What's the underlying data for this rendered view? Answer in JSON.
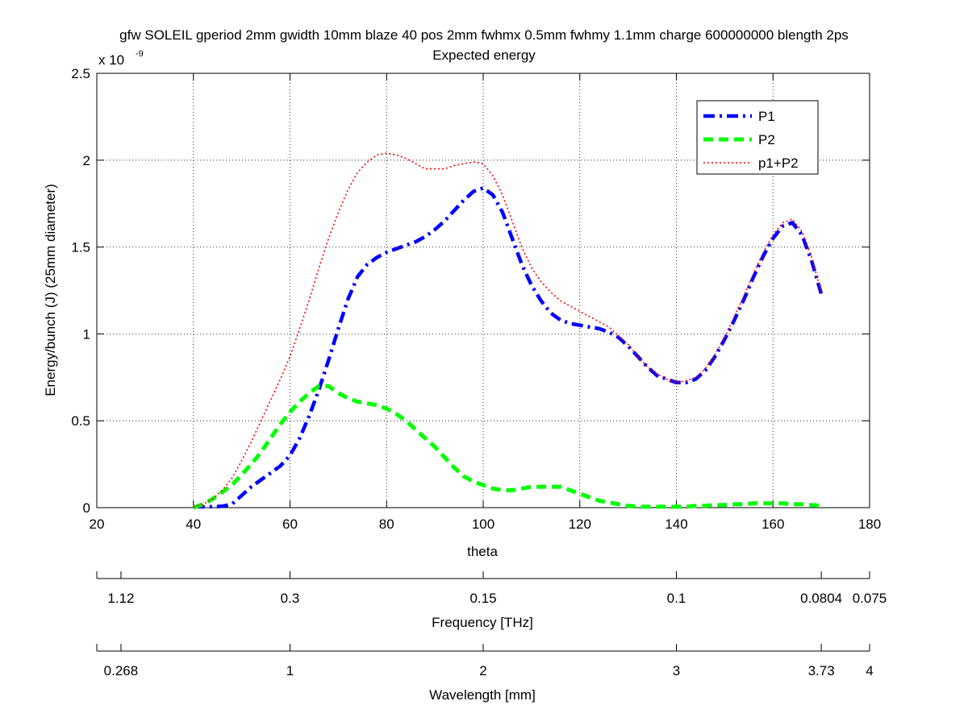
{
  "chart_data": {
    "type": "line",
    "title": "gfw SOLEIL gperiod 2mm gwidth 10mm blaze 40 pos 2mm fwhmx 0.5mm fwhmy 1.1mm charge 600000000 blength 2ps",
    "subtitle": "Expected energy",
    "xlabel": "theta",
    "ylabel": "Energy/bunch (J) (25mm diameter)",
    "y_exponent_label": "x 10",
    "y_exponent_power": "-9",
    "xlim": [
      20,
      180
    ],
    "ylim": [
      0,
      2.5
    ],
    "grid": true,
    "legend_position": "top-right",
    "x_ticks": [
      20,
      40,
      60,
      80,
      100,
      120,
      140,
      160,
      180
    ],
    "y_ticks": [
      0,
      0.5,
      1,
      1.5,
      2,
      2.5
    ],
    "x_tick_labels": [
      "20",
      "40",
      "60",
      "80",
      "100",
      "120",
      "140",
      "160",
      "180"
    ],
    "y_tick_labels": [
      "0",
      "0.5",
      "1",
      "1.5",
      "2",
      "2.5"
    ],
    "series": [
      {
        "name": "P1",
        "color": "#0000ff",
        "style": "dashdot",
        "points": [
          [
            40,
            0.005
          ],
          [
            42,
            0.005
          ],
          [
            44,
            0.005
          ],
          [
            46,
            0.008
          ],
          [
            48,
            0.02
          ],
          [
            50,
            0.07
          ],
          [
            52,
            0.12
          ],
          [
            54,
            0.16
          ],
          [
            56,
            0.2
          ],
          [
            58,
            0.24
          ],
          [
            60,
            0.3
          ],
          [
            62,
            0.4
          ],
          [
            64,
            0.53
          ],
          [
            66,
            0.68
          ],
          [
            68,
            0.85
          ],
          [
            70,
            1.03
          ],
          [
            72,
            1.2
          ],
          [
            74,
            1.33
          ],
          [
            76,
            1.4
          ],
          [
            78,
            1.44
          ],
          [
            80,
            1.47
          ],
          [
            82,
            1.49
          ],
          [
            84,
            1.51
          ],
          [
            86,
            1.53
          ],
          [
            88,
            1.56
          ],
          [
            90,
            1.6
          ],
          [
            92,
            1.65
          ],
          [
            94,
            1.71
          ],
          [
            96,
            1.77
          ],
          [
            98,
            1.82
          ],
          [
            100,
            1.84
          ],
          [
            102,
            1.8
          ],
          [
            104,
            1.7
          ],
          [
            106,
            1.55
          ],
          [
            108,
            1.4
          ],
          [
            110,
            1.28
          ],
          [
            112,
            1.19
          ],
          [
            114,
            1.12
          ],
          [
            116,
            1.08
          ],
          [
            118,
            1.06
          ],
          [
            120,
            1.05
          ],
          [
            122,
            1.04
          ],
          [
            124,
            1.03
          ],
          [
            126,
            1.01
          ],
          [
            128,
            0.98
          ],
          [
            130,
            0.93
          ],
          [
            132,
            0.87
          ],
          [
            134,
            0.81
          ],
          [
            136,
            0.76
          ],
          [
            138,
            0.74
          ],
          [
            140,
            0.72
          ],
          [
            142,
            0.72
          ],
          [
            144,
            0.74
          ],
          [
            146,
            0.79
          ],
          [
            148,
            0.87
          ],
          [
            150,
            0.97
          ],
          [
            152,
            1.08
          ],
          [
            154,
            1.2
          ],
          [
            156,
            1.33
          ],
          [
            158,
            1.45
          ],
          [
            160,
            1.55
          ],
          [
            162,
            1.62
          ],
          [
            164,
            1.64
          ],
          [
            166,
            1.57
          ],
          [
            168,
            1.42
          ],
          [
            170,
            1.23
          ]
        ]
      },
      {
        "name": "P2",
        "color": "#00ff00",
        "style": "dashed",
        "points": [
          [
            40,
            0.0
          ],
          [
            42,
            0.02
          ],
          [
            44,
            0.05
          ],
          [
            46,
            0.09
          ],
          [
            48,
            0.13
          ],
          [
            50,
            0.19
          ],
          [
            52,
            0.25
          ],
          [
            54,
            0.32
          ],
          [
            56,
            0.4
          ],
          [
            58,
            0.48
          ],
          [
            60,
            0.55
          ],
          [
            62,
            0.61
          ],
          [
            64,
            0.66
          ],
          [
            66,
            0.7
          ],
          [
            68,
            0.7
          ],
          [
            70,
            0.66
          ],
          [
            72,
            0.63
          ],
          [
            74,
            0.61
          ],
          [
            76,
            0.6
          ],
          [
            78,
            0.59
          ],
          [
            80,
            0.57
          ],
          [
            82,
            0.54
          ],
          [
            84,
            0.5
          ],
          [
            86,
            0.45
          ],
          [
            88,
            0.4
          ],
          [
            90,
            0.35
          ],
          [
            92,
            0.29
          ],
          [
            94,
            0.23
          ],
          [
            96,
            0.18
          ],
          [
            98,
            0.15
          ],
          [
            100,
            0.13
          ],
          [
            102,
            0.11
          ],
          [
            104,
            0.1
          ],
          [
            106,
            0.1
          ],
          [
            108,
            0.11
          ],
          [
            110,
            0.12
          ],
          [
            112,
            0.12
          ],
          [
            114,
            0.12
          ],
          [
            116,
            0.12
          ],
          [
            118,
            0.1
          ],
          [
            120,
            0.08
          ],
          [
            122,
            0.06
          ],
          [
            124,
            0.04
          ],
          [
            126,
            0.03
          ],
          [
            128,
            0.02
          ],
          [
            130,
            0.01
          ],
          [
            132,
            0.005
          ],
          [
            134,
            0.005
          ],
          [
            136,
            0.005
          ],
          [
            138,
            0.005
          ],
          [
            140,
            0.005
          ],
          [
            142,
            0.005
          ],
          [
            144,
            0.01
          ],
          [
            146,
            0.01
          ],
          [
            148,
            0.015
          ],
          [
            150,
            0.015
          ],
          [
            152,
            0.02
          ],
          [
            154,
            0.02
          ],
          [
            156,
            0.025
          ],
          [
            158,
            0.025
          ],
          [
            160,
            0.025
          ],
          [
            162,
            0.025
          ],
          [
            164,
            0.02
          ],
          [
            166,
            0.02
          ],
          [
            168,
            0.015
          ],
          [
            170,
            0.01
          ]
        ]
      },
      {
        "name": "p1+P2",
        "color": "#ff0000",
        "style": "dotted",
        "points": [
          [
            40,
            0.005
          ],
          [
            42,
            0.02
          ],
          [
            44,
            0.05
          ],
          [
            46,
            0.1
          ],
          [
            48,
            0.17
          ],
          [
            50,
            0.27
          ],
          [
            52,
            0.38
          ],
          [
            54,
            0.5
          ],
          [
            56,
            0.62
          ],
          [
            58,
            0.74
          ],
          [
            60,
            0.87
          ],
          [
            62,
            1.03
          ],
          [
            64,
            1.2
          ],
          [
            66,
            1.38
          ],
          [
            68,
            1.55
          ],
          [
            70,
            1.7
          ],
          [
            72,
            1.83
          ],
          [
            74,
            1.93
          ],
          [
            76,
            1.99
          ],
          [
            78,
            2.03
          ],
          [
            80,
            2.04
          ],
          [
            82,
            2.03
          ],
          [
            84,
            2.01
          ],
          [
            86,
            1.98
          ],
          [
            88,
            1.95
          ],
          [
            90,
            1.95
          ],
          [
            92,
            1.95
          ],
          [
            94,
            1.97
          ],
          [
            96,
            1.98
          ],
          [
            98,
            1.99
          ],
          [
            100,
            1.98
          ],
          [
            102,
            1.91
          ],
          [
            104,
            1.8
          ],
          [
            106,
            1.65
          ],
          [
            108,
            1.5
          ],
          [
            110,
            1.38
          ],
          [
            112,
            1.3
          ],
          [
            114,
            1.24
          ],
          [
            116,
            1.19
          ],
          [
            118,
            1.16
          ],
          [
            120,
            1.13
          ],
          [
            122,
            1.1
          ],
          [
            124,
            1.07
          ],
          [
            126,
            1.04
          ],
          [
            128,
            0.99
          ],
          [
            130,
            0.94
          ],
          [
            132,
            0.87
          ],
          [
            134,
            0.81
          ],
          [
            136,
            0.77
          ],
          [
            138,
            0.74
          ],
          [
            140,
            0.72
          ],
          [
            142,
            0.73
          ],
          [
            144,
            0.75
          ],
          [
            146,
            0.8
          ],
          [
            148,
            0.88
          ],
          [
            150,
            0.98
          ],
          [
            152,
            1.1
          ],
          [
            154,
            1.22
          ],
          [
            156,
            1.35
          ],
          [
            158,
            1.47
          ],
          [
            160,
            1.57
          ],
          [
            162,
            1.64
          ],
          [
            164,
            1.66
          ],
          [
            166,
            1.59
          ],
          [
            168,
            1.44
          ],
          [
            170,
            1.24
          ]
        ]
      }
    ],
    "secondary_axes": [
      {
        "label": "Frequency [THz]",
        "tick_labels": [
          "1.12",
          "0.3",
          "0.15",
          "0.1",
          "0.0804",
          "0.075"
        ],
        "tick_theta": [
          25,
          60,
          100,
          140,
          170,
          180
        ],
        "tick_marks_theta": [
          20,
          25,
          60,
          100,
          140,
          170,
          180
        ]
      },
      {
        "label": "Wavelength [mm]",
        "tick_labels": [
          "0.268",
          "1",
          "2",
          "3",
          "3.73",
          "4"
        ],
        "tick_theta": [
          25,
          60,
          100,
          140,
          170,
          180
        ],
        "tick_marks_theta": [
          20,
          25,
          60,
          100,
          140,
          170,
          180
        ]
      }
    ]
  }
}
